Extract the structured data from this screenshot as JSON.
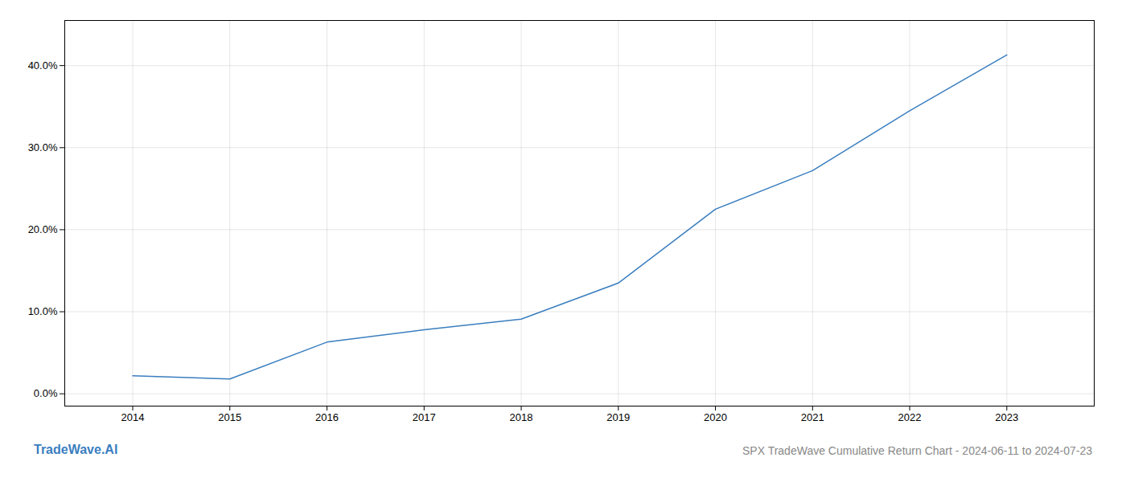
{
  "chart_data": {
    "type": "line",
    "title": "SPX TradeWave Cumulative Return Chart - 2024-06-11 to 2024-07-23",
    "annotations": [
      "TradeWave.AI"
    ],
    "x": [
      2014,
      2015,
      2016,
      2017,
      2018,
      2019,
      2020,
      2021,
      2022,
      2023
    ],
    "values": [
      0.022,
      0.018,
      0.063,
      0.078,
      0.091,
      0.135,
      0.225,
      0.272,
      0.345,
      0.413
    ],
    "color": "#3a7ebf",
    "xlim": [
      2013.3,
      2023.9
    ],
    "xticks": [
      2014,
      2015,
      2016,
      2017,
      2018,
      2019,
      2020,
      2021,
      2022,
      2023
    ],
    "ylim": [
      -0.015,
      0.455
    ],
    "yticks": [
      {
        "value": 0.0,
        "label": "0.0%"
      },
      {
        "value": 0.1,
        "label": "10.0%"
      },
      {
        "value": 0.2,
        "label": "20.0%"
      },
      {
        "value": 0.3,
        "label": "30.0%"
      },
      {
        "value": 0.4,
        "label": "40.0%"
      }
    ],
    "grid": true
  }
}
